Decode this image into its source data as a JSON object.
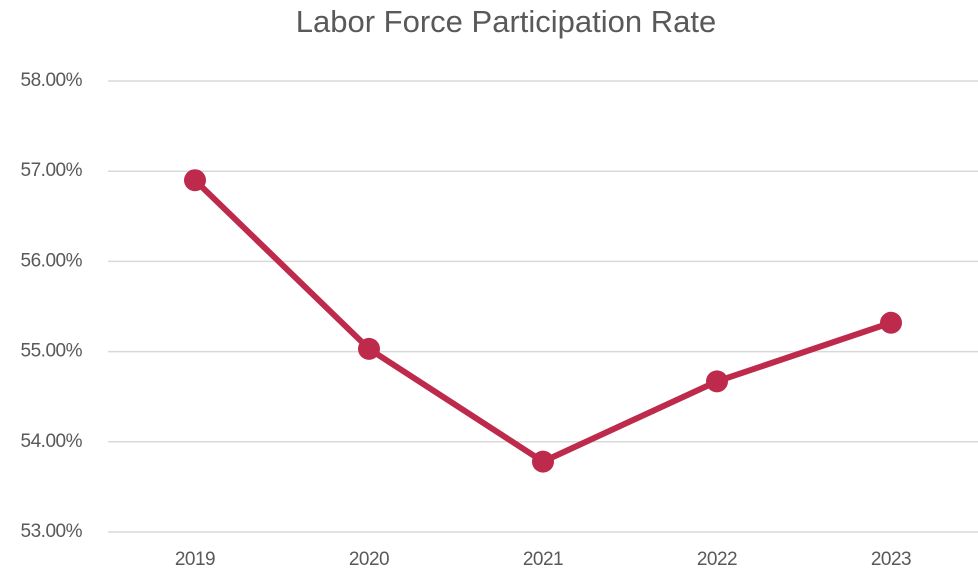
{
  "chart_data": {
    "type": "line",
    "title": "Labor Force Participation Rate",
    "categories": [
      "2019",
      "2020",
      "2021",
      "2022",
      "2023"
    ],
    "series": [
      {
        "name": "Labor Force Participation Rate",
        "color": "#be2a4b",
        "values": [
          56.9,
          55.03,
          53.78,
          54.67,
          55.32
        ]
      }
    ],
    "ylim": [
      53,
      58
    ],
    "yticks": [
      {
        "value": 53,
        "label": "53.00%"
      },
      {
        "value": 54,
        "label": "54.00%"
      },
      {
        "value": 55,
        "label": "55.00%"
      },
      {
        "value": 56,
        "label": "56.00%"
      },
      {
        "value": 57,
        "label": "57.00%"
      },
      {
        "value": 58,
        "label": "58.00%"
      }
    ],
    "grid": true
  }
}
